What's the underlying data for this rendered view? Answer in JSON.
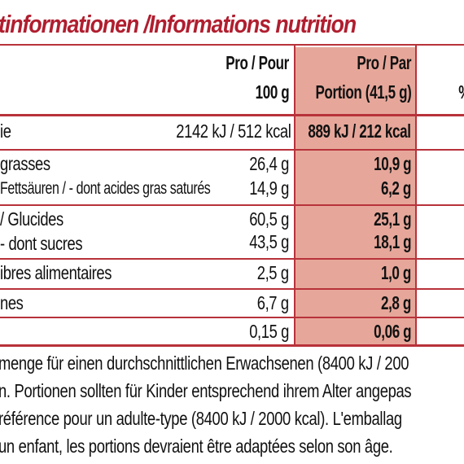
{
  "title": "tinformationen /Informations nutrition",
  "header": {
    "col_per100": [
      "Pro / Pour",
      "100 g"
    ],
    "col_portion": [
      "Pro / Par",
      "Portion (41,5 g)"
    ],
    "col_pct": "%"
  },
  "rows": [
    {
      "label": [
        "ie"
      ],
      "per100": [
        "2142 kJ / 512 kcal"
      ],
      "portion": [
        "889 kJ / 212 kcal"
      ]
    },
    {
      "label": [
        "grasses",
        "Fettsäuren / - dont acides gras saturés"
      ],
      "per100": [
        "26,4 g",
        "14,9 g"
      ],
      "portion": [
        "10,9 g",
        "6,2 g"
      ]
    },
    {
      "label": [
        "/ Glucides",
        "- dont sucres"
      ],
      "per100": [
        "60,5 g",
        "43,5 g"
      ],
      "portion": [
        "25,1 g",
        "18,1 g"
      ]
    },
    {
      "label": [
        "ibres alimentaires"
      ],
      "per100": [
        "2,5 g"
      ],
      "portion": [
        "1,0 g"
      ]
    },
    {
      "label": [
        "nes"
      ],
      "per100": [
        "6,7 g"
      ],
      "portion": [
        "2,8 g"
      ]
    },
    {
      "label": [
        ""
      ],
      "per100": [
        "0,15 g"
      ],
      "portion": [
        "0,06 g"
      ]
    }
  ],
  "footnote": [
    "menge für einen durchschnittlichen Erwachsenen (8400 kJ / 200",
    "n. Portionen sollten für Kinder entsprechend ihrem Alter angepas",
    "référence pour un adulte-type (8400 kJ / 2000 kcal). L'emballag",
    "un enfant, les portions devraient être adaptées selon son âge."
  ],
  "colors": {
    "accent": "#b01e2f",
    "portion_shade": "#e6a79a"
  }
}
